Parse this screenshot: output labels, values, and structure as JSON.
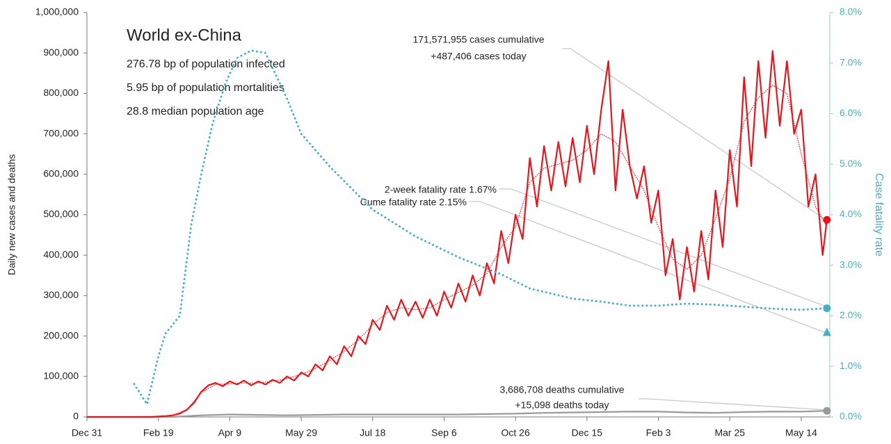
{
  "chart_data": {
    "type": "line",
    "title": "World ex-China",
    "subtitle_lines": [
      "276.78 bp of population infected",
      "5.95 bp of population mortalities",
      "28.8 median population age"
    ],
    "y_label": "Daily new cases and deaths",
    "y2_label": "Case fatality rate",
    "xlim": [
      0,
      520
    ],
    "xticks": [
      {
        "value": 0,
        "label": "Dec 31"
      },
      {
        "value": 50,
        "label": "Feb 19"
      },
      {
        "value": 100,
        "label": "Apr 9"
      },
      {
        "value": 150,
        "label": "May 29"
      },
      {
        "value": 200,
        "label": "Jul 18"
      },
      {
        "value": 250,
        "label": "Sep 6"
      },
      {
        "value": 300,
        "label": "Oct 26"
      },
      {
        "value": 350,
        "label": "Dec 15"
      },
      {
        "value": 400,
        "label": "Feb 3"
      },
      {
        "value": 450,
        "label": "Mar 25"
      },
      {
        "value": 500,
        "label": "May 14"
      }
    ],
    "ylim": [
      0,
      1000000
    ],
    "yticks": [
      0,
      {
        "value": 100000,
        "label": "100,000"
      },
      {
        "value": 200000,
        "label": "200,000"
      },
      {
        "value": 300000,
        "label": "300,000"
      },
      {
        "value": 400000,
        "label": "400,000"
      },
      {
        "value": 500000,
        "label": "500,000"
      },
      {
        "value": 600000,
        "label": "600,000"
      },
      {
        "value": 700000,
        "label": "700,000"
      },
      {
        "value": 800000,
        "label": "800,000"
      },
      {
        "value": 900000,
        "label": "900,000"
      },
      {
        "value": 1000000,
        "label": "1,000,000"
      }
    ],
    "y2lim": [
      0,
      8
    ],
    "y2ticks": [
      {
        "value": 0,
        "label": "0.0%"
      },
      {
        "value": 1,
        "label": "1.0%"
      },
      {
        "value": 2,
        "label": "2.0%"
      },
      {
        "value": 3,
        "label": "3.0%"
      },
      {
        "value": 4,
        "label": "4.0%"
      },
      {
        "value": 5,
        "label": "5.0%"
      },
      {
        "value": 6,
        "label": "6.0%"
      },
      {
        "value": 7,
        "label": "7.0%"
      },
      {
        "value": 8,
        "label": "8.0%"
      }
    ],
    "series": [
      {
        "color": "#999999",
        "style": "solid",
        "width": 2.2,
        "end_marker": "circle",
        "x": [
          0,
          40,
          60,
          80,
          100,
          120,
          140,
          160,
          180,
          200,
          220,
          240,
          260,
          280,
          300,
          320,
          340,
          360,
          380,
          400,
          420,
          440,
          460,
          480,
          500,
          518
        ],
        "values": [
          0,
          0,
          0,
          4000,
          6000,
          5000,
          4000,
          5000,
          6000,
          6000,
          6000,
          6000,
          6000,
          7000,
          8000,
          10000,
          11000,
          12000,
          13000,
          13000,
          11000,
          10000,
          12000,
          13000,
          13000,
          15098
        ]
      },
      {
        "color": "#e8141a",
        "style": "dotted",
        "width": 1.5,
        "x": [
          0,
          50,
          60,
          70,
          80,
          90,
          100,
          110,
          120,
          130,
          140,
          150,
          160,
          170,
          180,
          190,
          200,
          210,
          220,
          230,
          240,
          250,
          260,
          270,
          280,
          290,
          300,
          310,
          320,
          330,
          340,
          350,
          360,
          370,
          380,
          390,
          400,
          410,
          420,
          430,
          440,
          450,
          460,
          470,
          480,
          490,
          500,
          510,
          518
        ],
        "values": [
          0,
          1000,
          4000,
          18000,
          60000,
          80000,
          82000,
          84000,
          84000,
          88000,
          95000,
          105000,
          120000,
          140000,
          162000,
          190000,
          228000,
          258000,
          270000,
          265000,
          270000,
          290000,
          308000,
          325000,
          355000,
          420000,
          470000,
          580000,
          615000,
          625000,
          635000,
          660000,
          700000,
          680000,
          620000,
          560000,
          470000,
          390000,
          365000,
          400000,
          490000,
          590000,
          730000,
          790000,
          820000,
          800000,
          650000,
          520000,
          470000
        ]
      },
      {
        "color": "#e8141a",
        "style": "solid",
        "width": 2.2,
        "end_marker": "circle",
        "x": [
          0,
          5,
          10,
          15,
          20,
          25,
          30,
          35,
          40,
          45,
          50,
          55,
          60,
          65,
          70,
          75,
          80,
          85,
          90,
          95,
          100,
          105,
          110,
          115,
          120,
          125,
          130,
          135,
          140,
          145,
          150,
          155,
          160,
          165,
          170,
          175,
          180,
          185,
          190,
          195,
          200,
          205,
          210,
          215,
          220,
          225,
          230,
          235,
          240,
          245,
          250,
          255,
          260,
          265,
          270,
          275,
          280,
          285,
          290,
          295,
          300,
          305,
          310,
          315,
          320,
          325,
          330,
          335,
          340,
          345,
          350,
          355,
          360,
          365,
          370,
          375,
          380,
          385,
          390,
          395,
          400,
          405,
          410,
          415,
          420,
          425,
          430,
          435,
          440,
          445,
          450,
          455,
          460,
          465,
          470,
          475,
          480,
          485,
          490,
          495,
          500,
          505,
          510,
          515,
          518
        ],
        "values": [
          0,
          0,
          0,
          0,
          0,
          0,
          0,
          0,
          0,
          0,
          1000,
          2000,
          4000,
          8000,
          18000,
          35000,
          62000,
          78000,
          84000,
          76000,
          88000,
          80000,
          90000,
          78000,
          88000,
          80000,
          92000,
          84000,
          100000,
          90000,
          110000,
          100000,
          130000,
          115000,
          150000,
          130000,
          175000,
          150000,
          200000,
          180000,
          240000,
          215000,
          275000,
          240000,
          290000,
          250000,
          285000,
          245000,
          290000,
          250000,
          310000,
          270000,
          330000,
          285000,
          350000,
          300000,
          380000,
          330000,
          460000,
          380000,
          500000,
          440000,
          640000,
          520000,
          670000,
          560000,
          680000,
          570000,
          690000,
          580000,
          720000,
          600000,
          760000,
          880000,
          560000,
          760000,
          620000,
          540000,
          620000,
          480000,
          560000,
          350000,
          440000,
          290000,
          420000,
          310000,
          460000,
          340000,
          560000,
          420000,
          660000,
          520000,
          840000,
          620000,
          880000,
          690000,
          905000,
          720000,
          880000,
          700000,
          760000,
          520000,
          600000,
          400000,
          487406
        ]
      },
      {
        "color": "#4aaec3",
        "style": "dotted",
        "width": 3,
        "axis": "y2",
        "end_marker": "circle",
        "x": [
          33,
          42,
          50,
          55,
          65,
          73,
          80,
          88,
          97,
          105,
          115,
          125,
          140,
          150,
          170,
          200,
          230,
          260,
          290,
          310,
          340,
          360,
          380,
          400,
          420,
          440,
          460,
          480,
          500,
          518
        ],
        "values": [
          0.65,
          0.25,
          1.2,
          1.65,
          2.0,
          3.8,
          4.8,
          5.8,
          6.6,
          7.1,
          7.25,
          7.2,
          6.3,
          5.6,
          4.95,
          4.1,
          3.57,
          3.16,
          2.82,
          2.54,
          2.34,
          2.28,
          2.2,
          2.2,
          2.24,
          2.22,
          2.18,
          2.14,
          2.12,
          2.15
        ]
      }
    ],
    "points": [
      {
        "x": 518,
        "value": 1.67,
        "axis": "y2",
        "shape": "triangle",
        "color": "#4aaec3"
      }
    ],
    "annotations": [
      "171,571,955 cases cumulative",
      "+487,406 cases today",
      "2-week fatality rate 1.67%",
      "Cume fatality rate 2.15%",
      "3,686,708 deaths cumulative",
      "+15,098 deaths today"
    ]
  }
}
